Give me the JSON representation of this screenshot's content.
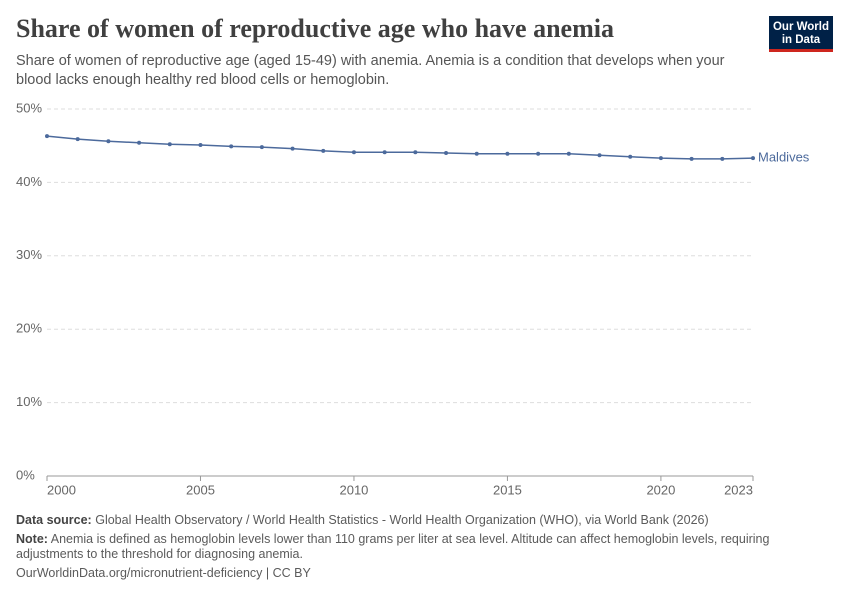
{
  "chart_data": {
    "type": "line",
    "title": "Share of women of reproductive age who have anemia",
    "subtitle": "Share of women of reproductive age (aged 15-49) with anemia. Anemia is a condition that develops when your blood lacks enough healthy red blood cells or hemoglobin.",
    "x": [
      2000,
      2001,
      2002,
      2003,
      2004,
      2005,
      2006,
      2007,
      2008,
      2009,
      2010,
      2011,
      2012,
      2013,
      2014,
      2015,
      2016,
      2017,
      2018,
      2019,
      2020,
      2021,
      2022,
      2023
    ],
    "series": [
      {
        "name": "Maldives",
        "color": "#4c6a9c",
        "values": [
          46.3,
          45.9,
          45.6,
          45.4,
          45.2,
          45.1,
          44.9,
          44.8,
          44.6,
          44.3,
          44.1,
          44.1,
          44.1,
          44.0,
          43.9,
          43.9,
          43.9,
          43.9,
          43.7,
          43.5,
          43.3,
          43.2,
          43.2,
          43.3
        ]
      }
    ],
    "xlim": [
      2000,
      2023
    ],
    "xticks": [
      2000,
      2005,
      2010,
      2015,
      2020,
      2023
    ],
    "ylim": [
      0,
      50
    ],
    "yticks": [
      {
        "value": 0,
        "label": "0%"
      },
      {
        "value": 10,
        "label": "10%"
      },
      {
        "value": 20,
        "label": "20%"
      },
      {
        "value": 30,
        "label": "30%"
      },
      {
        "value": 40,
        "label": "40%"
      },
      {
        "value": 50,
        "label": "50%"
      }
    ],
    "grid": true
  },
  "logo": {
    "line1": "Our World",
    "line2": "in Data"
  },
  "footer": {
    "source_label": "Data source:",
    "source": "Global Health Observatory / World Health Statistics - World Health Organization (WHO), via World Bank (2026)",
    "note_label": "Note:",
    "note": "Anemia is defined as hemoglobin levels lower than 110 grams per liter at sea level. Altitude can affect hemoglobin levels, requiring adjustments to the threshold for diagnosing anemia.",
    "url": "OurWorldinData.org/micronutrient-deficiency | CC BY"
  }
}
